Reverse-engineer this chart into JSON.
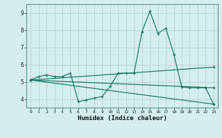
{
  "xlabel": "Humidex (Indice chaleur)",
  "bg_color": "#d4eeed",
  "grid_color": "#b8d8d4",
  "line_color": "#1a7a6e",
  "xlim": [
    -0.5,
    23.5
  ],
  "ylim": [
    3.5,
    9.5
  ],
  "yticks": [
    4,
    5,
    6,
    7,
    8,
    9
  ],
  "xticks": [
    0,
    1,
    2,
    3,
    4,
    5,
    6,
    7,
    8,
    9,
    10,
    11,
    12,
    13,
    14,
    15,
    16,
    17,
    18,
    19,
    20,
    21,
    22,
    23
  ],
  "series": [
    {
      "x": [
        0,
        1,
        2,
        3,
        4,
        5,
        6,
        7,
        8,
        9,
        10,
        11,
        12,
        13,
        14,
        15,
        16,
        17,
        18,
        19,
        20,
        21,
        22,
        23
      ],
      "y": [
        5.1,
        5.3,
        5.4,
        5.3,
        5.3,
        5.5,
        3.85,
        3.95,
        4.05,
        4.15,
        4.75,
        5.5,
        5.5,
        5.5,
        7.9,
        9.1,
        7.8,
        8.1,
        6.6,
        4.7,
        4.65,
        4.65,
        4.65,
        3.7
      ]
    },
    {
      "x": [
        0,
        23
      ],
      "y": [
        5.1,
        3.7
      ]
    },
    {
      "x": [
        0,
        23
      ],
      "y": [
        5.1,
        5.85
      ]
    },
    {
      "x": [
        0,
        23
      ],
      "y": [
        5.1,
        4.65
      ]
    }
  ]
}
